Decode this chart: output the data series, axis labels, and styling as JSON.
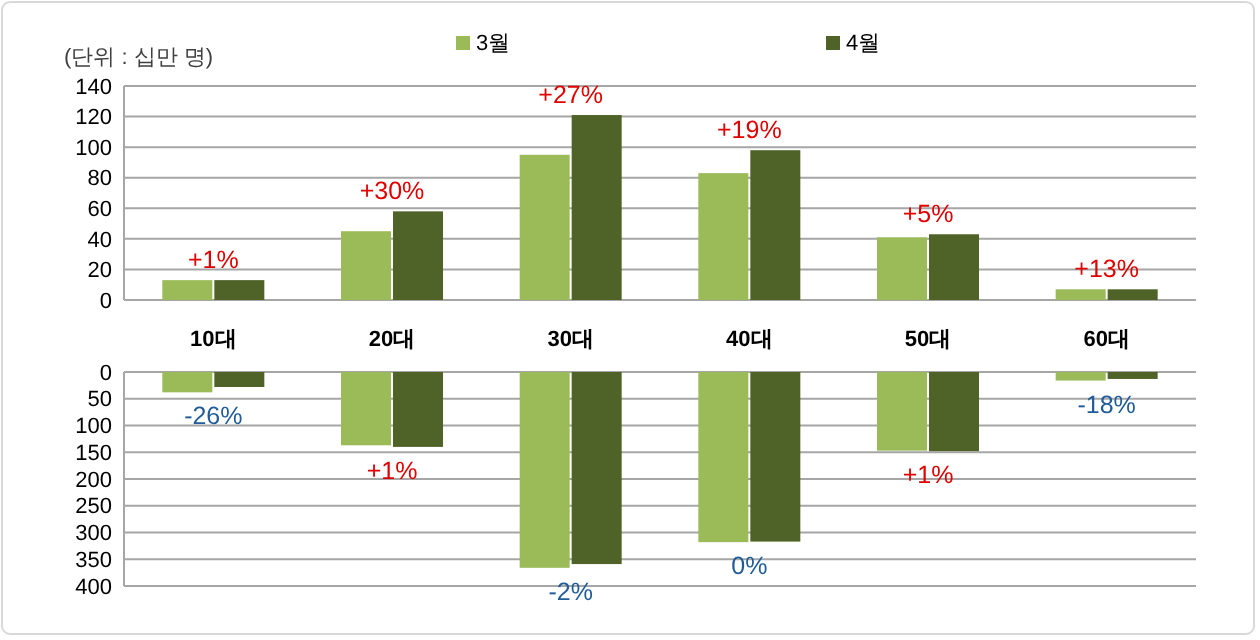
{
  "chart_data": [
    {
      "type": "bar",
      "ylabel": "(단위 : 십만 명)",
      "categories": [
        "10대",
        "20대",
        "30대",
        "40대",
        "50대",
        "60대"
      ],
      "series": [
        {
          "name": "3월",
          "color": "#9bbb59",
          "values": [
            13,
            45,
            95,
            83,
            41,
            7
          ]
        },
        {
          "name": "4월",
          "color": "#4f6228",
          "values": [
            13,
            58,
            121,
            98,
            43,
            7
          ]
        }
      ],
      "annotations": [
        {
          "text": "+1%",
          "x": "10대",
          "y": 13
        },
        {
          "text": "+30%",
          "x": "20대",
          "y": 58
        },
        {
          "text": "+27%",
          "x": "30대",
          "y": 121
        },
        {
          "text": "+19%",
          "x": "40대",
          "y": 98
        },
        {
          "text": "+5%",
          "x": "50대",
          "y": 43
        },
        {
          "text": "+13%",
          "x": "60대",
          "y": 7
        }
      ],
      "ylim": [
        0,
        140
      ],
      "yticks": [
        0,
        20,
        40,
        60,
        80,
        100,
        120,
        140
      ],
      "grid": "y",
      "legend": "top"
    },
    {
      "type": "bar",
      "categories": [
        null,
        null,
        null,
        null,
        null,
        null
      ],
      "series": [
        {
          "color": "#9bbb59",
          "values": [
            38,
            137,
            366,
            318,
            147,
            16
          ]
        },
        {
          "color": "#4f6228",
          "values": [
            28,
            140,
            359,
            317,
            148,
            13
          ]
        }
      ],
      "annotations": [
        {
          "text": "-26%",
          "y": 38
        },
        {
          "text": "+1%",
          "y": 140
        },
        {
          "text": "-2%",
          "y": 366
        },
        {
          "text": "0%",
          "y": 318
        },
        {
          "text": "+1%",
          "y": 148
        },
        {
          "text": "-18%",
          "y": 16
        }
      ],
      "ylim": [
        400,
        0
      ],
      "yticks": [
        0,
        50,
        100,
        150,
        200,
        250,
        300,
        350,
        400
      ],
      "grid": "y",
      "tick_labels": "y"
    }
  ]
}
